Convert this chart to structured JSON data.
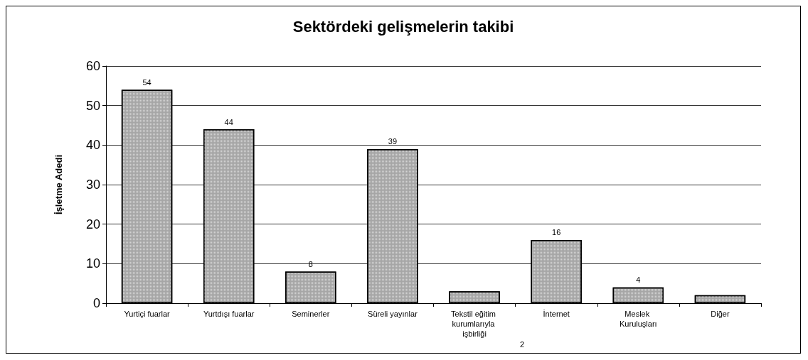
{
  "chart_data": {
    "type": "bar",
    "title": "Sektördeki gelişmelerin takibi",
    "ylabel": "İşletme Adedi",
    "categories": [
      "Yurtiçi fuarlar",
      "Yurtdışı fuarlar",
      "Seminerler",
      "Süreli yayınlar",
      "Tekstil eğitim kurumlarıyla işbirliği",
      "İnternet",
      "Meslek Kuruluşları",
      "Diğer"
    ],
    "values": [
      54,
      44,
      8,
      39,
      3,
      16,
      4,
      2
    ],
    "value_labels": [
      "54",
      "44",
      "8",
      "39",
      null,
      "16",
      "4",
      null
    ],
    "color": "#a6a6a6",
    "ylim": [
      0,
      60
    ],
    "yticks": [
      0,
      10,
      20,
      30,
      40,
      50,
      60
    ],
    "grid": "y",
    "annotations": [
      "2"
    ]
  }
}
